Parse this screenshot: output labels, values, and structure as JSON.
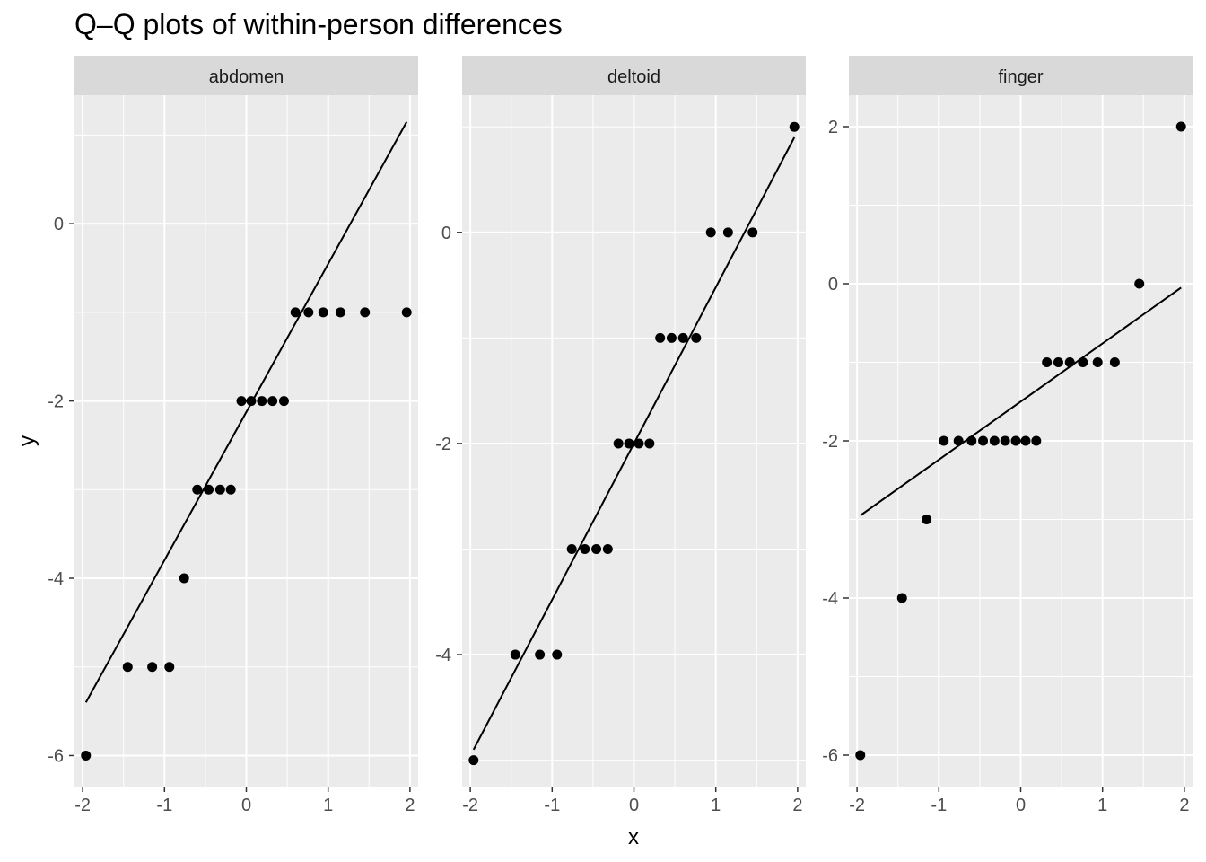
{
  "figure": {
    "title": "Q–Q plots of within-person differences",
    "xlabel": "x",
    "ylabel": "y"
  },
  "colors": {
    "background": "#ffffff",
    "panel": "#ebebeb",
    "grid": "#ffffff",
    "strip": "#d9d9d9",
    "points": "#000000",
    "line": "#000000"
  },
  "chart_data": [
    {
      "type": "scatter",
      "facet": "abdomen",
      "xlabel": "x",
      "ylabel": "y",
      "xlim": [
        -2.1,
        2.1
      ],
      "ylim": [
        -6.35,
        1.45
      ],
      "x_ticks": [
        -2,
        -1,
        0,
        1,
        2
      ],
      "x_tick_labels": [
        "-2",
        "-1",
        "0",
        "1",
        "2"
      ],
      "y_ticks": [
        -6,
        -4,
        -2,
        0
      ],
      "y_tick_labels": [
        "-6",
        "-4",
        "-2",
        "0"
      ],
      "points": [
        {
          "x": -1.96,
          "y": -6
        },
        {
          "x": -1.45,
          "y": -5
        },
        {
          "x": -1.15,
          "y": -5
        },
        {
          "x": -0.94,
          "y": -5
        },
        {
          "x": -0.76,
          "y": -4
        },
        {
          "x": -0.6,
          "y": -3
        },
        {
          "x": -0.46,
          "y": -3
        },
        {
          "x": -0.32,
          "y": -3
        },
        {
          "x": -0.19,
          "y": -3
        },
        {
          "x": -0.06,
          "y": -2
        },
        {
          "x": 0.06,
          "y": -2
        },
        {
          "x": 0.19,
          "y": -2
        },
        {
          "x": 0.32,
          "y": -2
        },
        {
          "x": 0.46,
          "y": -2
        },
        {
          "x": 0.6,
          "y": -1
        },
        {
          "x": 0.76,
          "y": -1
        },
        {
          "x": 0.94,
          "y": -1
        },
        {
          "x": 1.15,
          "y": -1
        },
        {
          "x": 1.45,
          "y": -1
        },
        {
          "x": 1.96,
          "y": -1
        }
      ],
      "reference_line": {
        "x": [
          -1.96,
          1.96
        ],
        "y": [
          -5.4,
          1.15
        ]
      }
    },
    {
      "type": "scatter",
      "facet": "deltoid",
      "xlabel": "x",
      "ylabel": "y",
      "xlim": [
        -2.1,
        2.1
      ],
      "ylim": [
        -5.25,
        1.3
      ],
      "x_ticks": [
        -2,
        -1,
        0,
        1,
        2
      ],
      "x_tick_labels": [
        "-2",
        "-1",
        "0",
        "1",
        "2"
      ],
      "y_ticks": [
        -4,
        -2,
        0
      ],
      "y_tick_labels": [
        "-4",
        "-2",
        "0"
      ],
      "points": [
        {
          "x": -1.96,
          "y": -5
        },
        {
          "x": -1.45,
          "y": -4
        },
        {
          "x": -1.15,
          "y": -4
        },
        {
          "x": -0.94,
          "y": -4
        },
        {
          "x": -0.76,
          "y": -3
        },
        {
          "x": -0.6,
          "y": -3
        },
        {
          "x": -0.46,
          "y": -3
        },
        {
          "x": -0.32,
          "y": -3
        },
        {
          "x": -0.19,
          "y": -2
        },
        {
          "x": -0.06,
          "y": -2
        },
        {
          "x": 0.06,
          "y": -2
        },
        {
          "x": 0.19,
          "y": -2
        },
        {
          "x": 0.32,
          "y": -1
        },
        {
          "x": 0.46,
          "y": -1
        },
        {
          "x": 0.6,
          "y": -1
        },
        {
          "x": 0.76,
          "y": -1
        },
        {
          "x": 0.94,
          "y": 0
        },
        {
          "x": 1.15,
          "y": 0
        },
        {
          "x": 1.45,
          "y": 0
        },
        {
          "x": 1.96,
          "y": 1
        }
      ],
      "reference_line": {
        "x": [
          -1.96,
          1.96
        ],
        "y": [
          -4.9,
          0.9
        ]
      }
    },
    {
      "type": "scatter",
      "facet": "finger",
      "xlabel": "x",
      "ylabel": "y",
      "xlim": [
        -2.1,
        2.1
      ],
      "ylim": [
        -6.4,
        2.4
      ],
      "x_ticks": [
        -2,
        -1,
        0,
        1,
        2
      ],
      "x_tick_labels": [
        "-2",
        "-1",
        "0",
        "1",
        "2"
      ],
      "y_ticks": [
        -6,
        -4,
        -2,
        0,
        2
      ],
      "y_tick_labels": [
        "-6",
        "-4",
        "-2",
        "0",
        "2"
      ],
      "points": [
        {
          "x": -1.96,
          "y": -6
        },
        {
          "x": -1.45,
          "y": -4
        },
        {
          "x": -1.15,
          "y": -3
        },
        {
          "x": -0.94,
          "y": -2
        },
        {
          "x": -0.76,
          "y": -2
        },
        {
          "x": -0.6,
          "y": -2
        },
        {
          "x": -0.46,
          "y": -2
        },
        {
          "x": -0.32,
          "y": -2
        },
        {
          "x": -0.19,
          "y": -2
        },
        {
          "x": -0.06,
          "y": -2
        },
        {
          "x": 0.06,
          "y": -2
        },
        {
          "x": 0.19,
          "y": -2
        },
        {
          "x": 0.32,
          "y": -1
        },
        {
          "x": 0.46,
          "y": -1
        },
        {
          "x": 0.6,
          "y": -1
        },
        {
          "x": 0.76,
          "y": -1
        },
        {
          "x": 0.94,
          "y": -1
        },
        {
          "x": 1.15,
          "y": -1
        },
        {
          "x": 1.45,
          "y": 0
        },
        {
          "x": 1.96,
          "y": 2
        }
      ],
      "reference_line": {
        "x": [
          -1.96,
          1.96
        ],
        "y": [
          -2.95,
          -0.05
        ]
      }
    }
  ]
}
